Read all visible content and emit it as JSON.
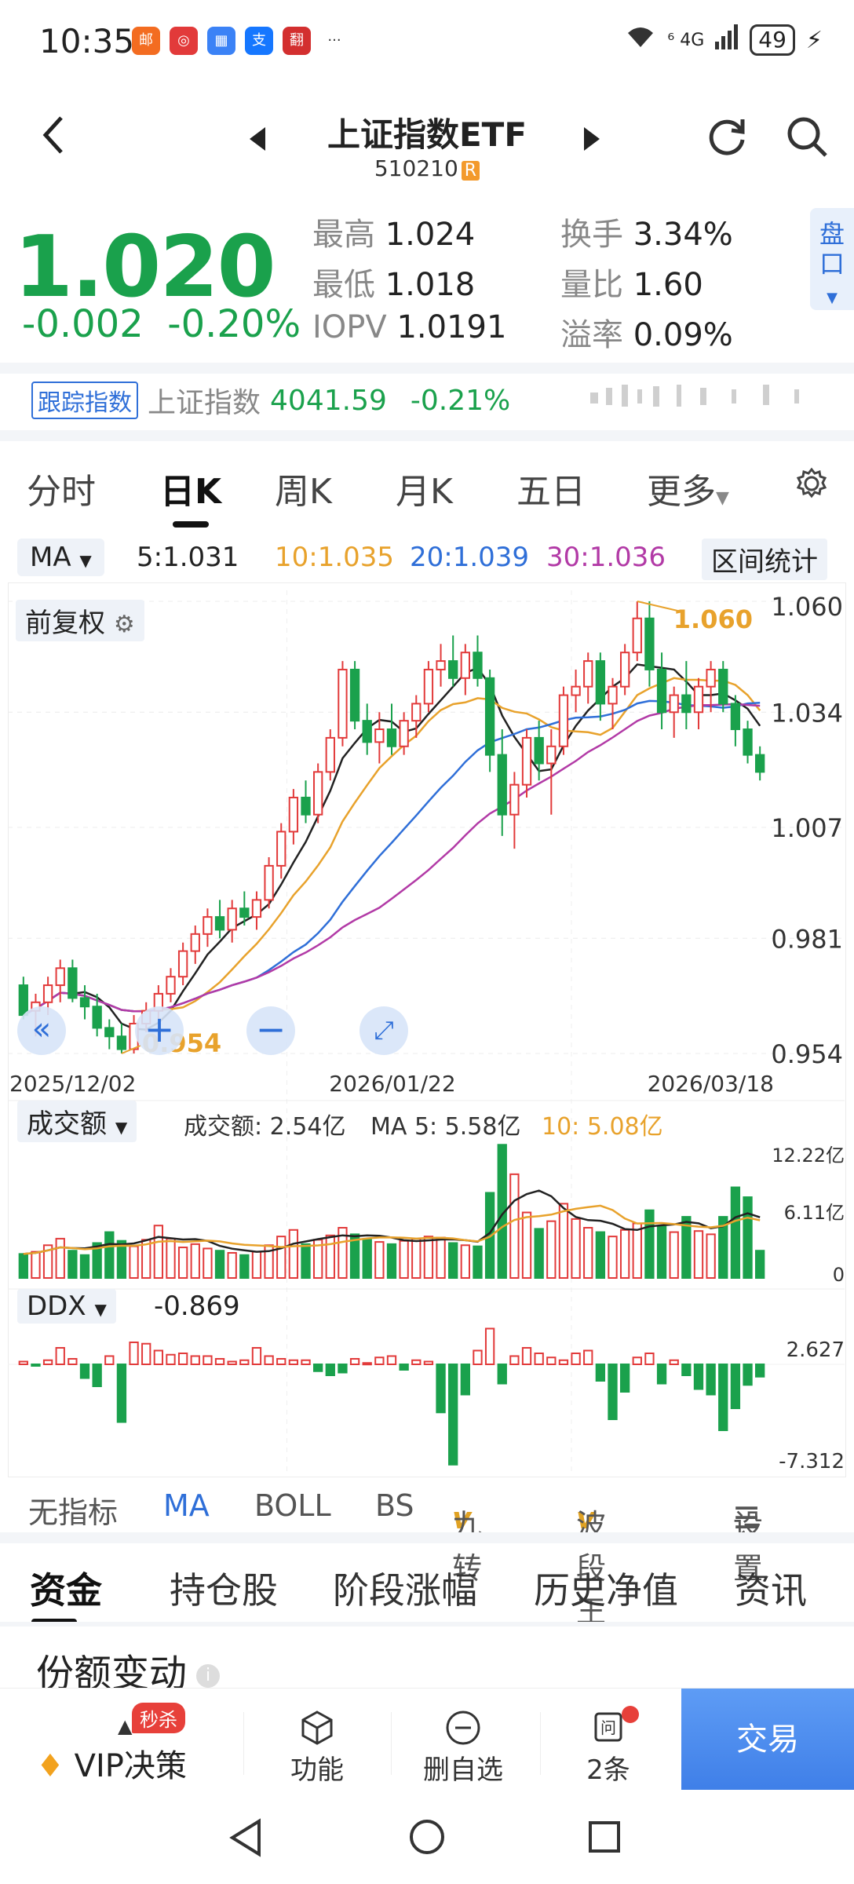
{
  "status_bar": {
    "time": "10:35",
    "signal": "⁶ 4G",
    "battery": "49"
  },
  "status_apps": [
    {
      "label": "邮",
      "color": "#f36c21"
    },
    {
      "label": "◎",
      "color": "#e23a3a"
    },
    {
      "label": "▦",
      "color": "#3b82f6"
    },
    {
      "label": "支",
      "color": "#1677ff"
    },
    {
      "label": "翻",
      "color": "#d32f2f"
    },
    {
      "label": "···",
      "color": "#ffffff"
    }
  ],
  "header": {
    "title": "上证指数ETF",
    "code": "510210",
    "code_badge": "R"
  },
  "quote": {
    "price": "1.020",
    "change": "-0.002",
    "change_pct": "-0.20%",
    "high_label": "最高",
    "high": "1.024",
    "low_label": "最低",
    "low": "1.018",
    "iopv_label": "IOPV",
    "iopv": "1.0191",
    "turnover_label": "换手",
    "turnover": "3.34%",
    "volume_ratio_label": "量比",
    "volume_ratio": "1.60",
    "premium_label": "溢率",
    "premium": "0.09%",
    "side_tab": "盘口"
  },
  "tracking": {
    "tag": "跟踪指数",
    "index_name": "上证指数",
    "index_value": "4041.59",
    "index_change": "-0.21%"
  },
  "tabs": [
    {
      "label": "分时"
    },
    {
      "label": "日K"
    },
    {
      "label": "周K"
    },
    {
      "label": "月K"
    },
    {
      "label": "五日"
    },
    {
      "label": "更多"
    }
  ],
  "active_tab": "日K",
  "ma_bar": {
    "selector": "MA",
    "ma5": "5:1.031",
    "ma10": "10:1.035",
    "ma20": "20:1.039",
    "ma30": "30:1.036",
    "range_stats": "区间统计"
  },
  "colors": {
    "up": "#e23a3a",
    "down": "#1aa14c",
    "ma5": "#222222",
    "ma10": "#e8a22c",
    "ma20": "#2f6fd8",
    "ma30": "#b23aa6",
    "accent": "#2f6fd8"
  },
  "price_chart": {
    "adjust_label": "前复权",
    "y_labels": [
      "1.060",
      "1.034",
      "1.007",
      "0.981",
      "0.954"
    ],
    "x_labels": [
      "2025/12/02",
      "2026/01/22",
      "2026/03/18"
    ],
    "max_marker": "1.060",
    "min_marker": "0.954"
  },
  "volume_panel": {
    "selector": "成交额",
    "value_text": "成交额: 2.54亿",
    "ma5_text": "MA 5: 5.58亿",
    "ma10_text": "10: 5.08亿",
    "y_labels": [
      "12.22亿",
      "6.11亿",
      "0"
    ]
  },
  "ddx_panel": {
    "selector": "DDX",
    "value": "-0.869",
    "y_labels": [
      "2.627",
      "-7.312"
    ]
  },
  "indicators": [
    {
      "label": "无指标",
      "active": false,
      "v": false
    },
    {
      "label": "MA",
      "active": true,
      "v": false
    },
    {
      "label": "BOLL",
      "active": false,
      "v": false
    },
    {
      "label": "BS",
      "active": false,
      "v": false
    },
    {
      "label": "九转",
      "active": false,
      "v": true
    },
    {
      "label": "波段王",
      "active": false,
      "v": true
    },
    {
      "label": "设置",
      "active": false,
      "v": false
    }
  ],
  "sub_tabs": [
    {
      "label": "资金"
    },
    {
      "label": "持仓股"
    },
    {
      "label": "阶段涨幅"
    },
    {
      "label": "历史净值"
    },
    {
      "label": "资讯"
    }
  ],
  "section": {
    "title": "份额变动"
  },
  "bottom_bar": {
    "vip_badge": "秒杀",
    "vip_label": "VIP决策",
    "func_label": "功能",
    "del_label": "删自选",
    "ask_label": "2条",
    "trade_label": "交易"
  },
  "chart_data": [
    {
      "type": "candlestick",
      "title": "",
      "x_range": [
        "2025/12/02",
        "2026/03/18"
      ],
      "ylim": [
        0.954,
        1.06
      ],
      "candles": [
        {
          "o": 0.97,
          "h": 0.972,
          "l": 0.962,
          "c": 0.963
        },
        {
          "o": 0.964,
          "h": 0.968,
          "l": 0.958,
          "c": 0.966
        },
        {
          "o": 0.966,
          "h": 0.972,
          "l": 0.963,
          "c": 0.97
        },
        {
          "o": 0.97,
          "h": 0.976,
          "l": 0.966,
          "c": 0.974
        },
        {
          "o": 0.974,
          "h": 0.976,
          "l": 0.966,
          "c": 0.967
        },
        {
          "o": 0.967,
          "h": 0.97,
          "l": 0.962,
          "c": 0.965
        },
        {
          "o": 0.965,
          "h": 0.968,
          "l": 0.958,
          "c": 0.96
        },
        {
          "o": 0.96,
          "h": 0.962,
          "l": 0.955,
          "c": 0.958
        },
        {
          "o": 0.958,
          "h": 0.961,
          "l": 0.954,
          "c": 0.955
        },
        {
          "o": 0.955,
          "h": 0.963,
          "l": 0.954,
          "c": 0.961
        },
        {
          "o": 0.961,
          "h": 0.966,
          "l": 0.959,
          "c": 0.964
        },
        {
          "o": 0.964,
          "h": 0.97,
          "l": 0.962,
          "c": 0.968
        },
        {
          "o": 0.968,
          "h": 0.974,
          "l": 0.966,
          "c": 0.972
        },
        {
          "o": 0.972,
          "h": 0.98,
          "l": 0.97,
          "c": 0.978
        },
        {
          "o": 0.978,
          "h": 0.984,
          "l": 0.975,
          "c": 0.982
        },
        {
          "o": 0.982,
          "h": 0.988,
          "l": 0.979,
          "c": 0.986
        },
        {
          "o": 0.986,
          "h": 0.99,
          "l": 0.981,
          "c": 0.983
        },
        {
          "o": 0.983,
          "h": 0.99,
          "l": 0.98,
          "c": 0.988
        },
        {
          "o": 0.988,
          "h": 0.992,
          "l": 0.984,
          "c": 0.986
        },
        {
          "o": 0.986,
          "h": 0.992,
          "l": 0.983,
          "c": 0.99
        },
        {
          "o": 0.99,
          "h": 1.0,
          "l": 0.988,
          "c": 0.998
        },
        {
          "o": 0.998,
          "h": 1.008,
          "l": 0.995,
          "c": 1.006
        },
        {
          "o": 1.006,
          "h": 1.016,
          "l": 1.003,
          "c": 1.014
        },
        {
          "o": 1.014,
          "h": 1.018,
          "l": 1.008,
          "c": 1.01
        },
        {
          "o": 1.01,
          "h": 1.022,
          "l": 1.008,
          "c": 1.02
        },
        {
          "o": 1.02,
          "h": 1.03,
          "l": 1.018,
          "c": 1.028
        },
        {
          "o": 1.028,
          "h": 1.046,
          "l": 1.026,
          "c": 1.044
        },
        {
          "o": 1.044,
          "h": 1.046,
          "l": 1.03,
          "c": 1.032
        },
        {
          "o": 1.032,
          "h": 1.036,
          "l": 1.024,
          "c": 1.027
        },
        {
          "o": 1.027,
          "h": 1.034,
          "l": 1.022,
          "c": 1.03
        },
        {
          "o": 1.03,
          "h": 1.036,
          "l": 1.024,
          "c": 1.026
        },
        {
          "o": 1.026,
          "h": 1.034,
          "l": 1.024,
          "c": 1.032
        },
        {
          "o": 1.032,
          "h": 1.038,
          "l": 1.028,
          "c": 1.036
        },
        {
          "o": 1.036,
          "h": 1.046,
          "l": 1.034,
          "c": 1.044
        },
        {
          "o": 1.044,
          "h": 1.05,
          "l": 1.04,
          "c": 1.046
        },
        {
          "o": 1.046,
          "h": 1.052,
          "l": 1.04,
          "c": 1.042
        },
        {
          "o": 1.042,
          "h": 1.05,
          "l": 1.038,
          "c": 1.048
        },
        {
          "o": 1.048,
          "h": 1.052,
          "l": 1.04,
          "c": 1.042
        },
        {
          "o": 1.042,
          "h": 1.044,
          "l": 1.02,
          "c": 1.024
        },
        {
          "o": 1.024,
          "h": 1.03,
          "l": 1.005,
          "c": 1.01
        },
        {
          "o": 1.01,
          "h": 1.02,
          "l": 1.002,
          "c": 1.017
        },
        {
          "o": 1.017,
          "h": 1.03,
          "l": 1.014,
          "c": 1.028
        },
        {
          "o": 1.028,
          "h": 1.032,
          "l": 1.018,
          "c": 1.022
        },
        {
          "o": 1.022,
          "h": 1.03,
          "l": 1.01,
          "c": 1.026
        },
        {
          "o": 1.026,
          "h": 1.04,
          "l": 1.024,
          "c": 1.038
        },
        {
          "o": 1.038,
          "h": 1.044,
          "l": 1.034,
          "c": 1.04
        },
        {
          "o": 1.04,
          "h": 1.048,
          "l": 1.036,
          "c": 1.046
        },
        {
          "o": 1.046,
          "h": 1.048,
          "l": 1.032,
          "c": 1.036
        },
        {
          "o": 1.036,
          "h": 1.042,
          "l": 1.03,
          "c": 1.04
        },
        {
          "o": 1.04,
          "h": 1.05,
          "l": 1.038,
          "c": 1.048
        },
        {
          "o": 1.048,
          "h": 1.06,
          "l": 1.046,
          "c": 1.056
        },
        {
          "o": 1.056,
          "h": 1.06,
          "l": 1.04,
          "c": 1.044
        },
        {
          "o": 1.044,
          "h": 1.048,
          "l": 1.03,
          "c": 1.034
        },
        {
          "o": 1.034,
          "h": 1.04,
          "l": 1.028,
          "c": 1.038
        },
        {
          "o": 1.038,
          "h": 1.046,
          "l": 1.03,
          "c": 1.034
        },
        {
          "o": 1.034,
          "h": 1.042,
          "l": 1.03,
          "c": 1.04
        },
        {
          "o": 1.04,
          "h": 1.046,
          "l": 1.034,
          "c": 1.044
        },
        {
          "o": 1.044,
          "h": 1.046,
          "l": 1.034,
          "c": 1.036
        },
        {
          "o": 1.036,
          "h": 1.038,
          "l": 1.026,
          "c": 1.03
        },
        {
          "o": 1.03,
          "h": 1.032,
          "l": 1.022,
          "c": 1.024
        },
        {
          "o": 1.024,
          "h": 1.026,
          "l": 1.018,
          "c": 1.02
        }
      ]
    },
    {
      "type": "bar",
      "title": "成交额",
      "ylim": [
        0,
        12.22
      ],
      "values": [
        2.2,
        2.4,
        3.0,
        3.6,
        2.5,
        2.1,
        3.2,
        4.2,
        3.4,
        2.9,
        3.5,
        4.8,
        3.6,
        2.8,
        3.1,
        2.7,
        2.5,
        2.3,
        2.1,
        2.4,
        3.0,
        3.8,
        4.4,
        3.1,
        3.5,
        3.9,
        4.6,
        4.0,
        3.5,
        3.3,
        3.1,
        3.4,
        3.6,
        3.8,
        3.7,
        3.2,
        3.0,
        2.9,
        7.8,
        12.2,
        9.5,
        6.0,
        4.5,
        5.2,
        6.8,
        5.4,
        4.6,
        4.2,
        3.8,
        4.4,
        5.0,
        6.2,
        4.7,
        4.2,
        5.6,
        4.3,
        4.0,
        5.6,
        8.3,
        7.4,
        2.5
      ],
      "ma5_text": "MA 5: 5.58亿",
      "ma10_text": "10: 5.08亿"
    },
    {
      "type": "bar",
      "title": "DDX",
      "ylim": [
        -7.312,
        2.627
      ],
      "values": [
        0.2,
        -0.1,
        0.3,
        1.2,
        0.4,
        -1.0,
        -1.6,
        0.6,
        -4.2,
        1.6,
        1.5,
        1.0,
        0.7,
        0.8,
        0.6,
        0.6,
        0.4,
        0.2,
        0.3,
        1.2,
        0.6,
        0.4,
        0.3,
        0.3,
        -0.5,
        -0.8,
        -0.6,
        0.4,
        0.1,
        0.5,
        0.6,
        -0.4,
        0.3,
        0.2,
        -3.5,
        -7.3,
        -2.2,
        1.0,
        2.6,
        -1.4,
        0.6,
        1.2,
        0.8,
        0.5,
        0.3,
        0.8,
        1.0,
        -1.2,
        -4.0,
        -2.0,
        0.5,
        0.8,
        -1.4,
        0.3,
        -0.8,
        -1.8,
        -2.2,
        -4.8,
        -3.2,
        -1.5,
        -0.9
      ]
    }
  ]
}
